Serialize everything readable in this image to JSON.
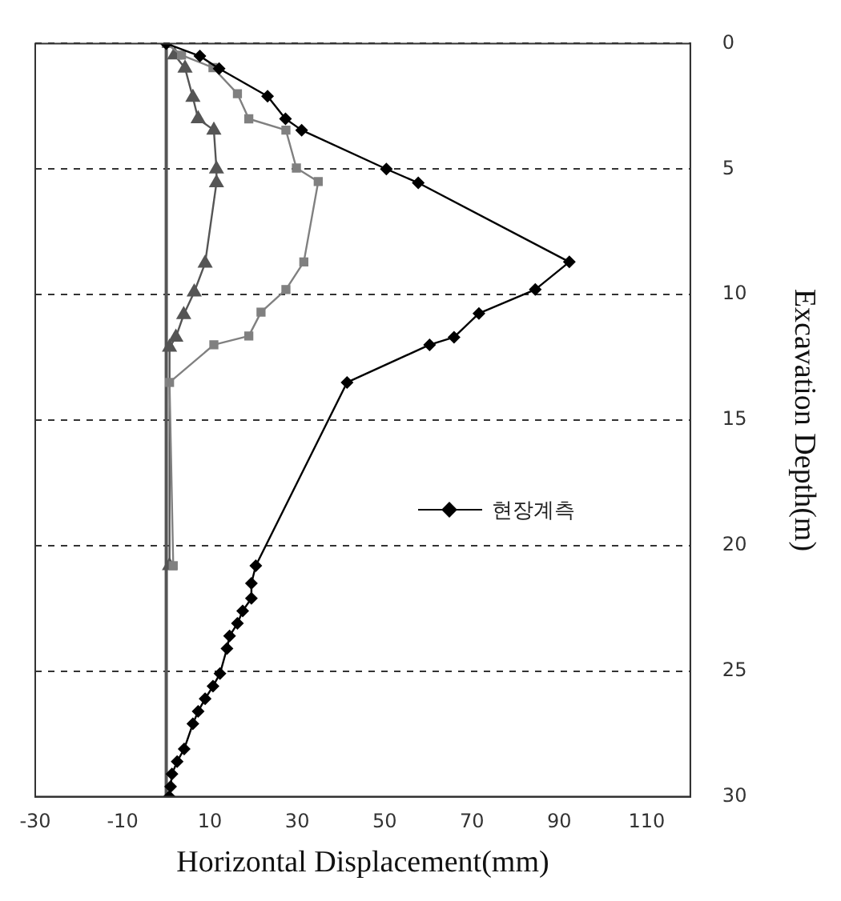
{
  "chart_data": {
    "type": "line",
    "xlabel": "Horizontal Displacement(mm)",
    "ylabel": "Excavation Depth(m)",
    "xlim": [
      -30,
      120
    ],
    "xticks": [
      -30,
      -10,
      10,
      30,
      50,
      70,
      90,
      110
    ],
    "ylim": [
      30,
      0
    ],
    "yticks": [
      0,
      5,
      10,
      15,
      20,
      25,
      30
    ],
    "grid": "y",
    "legend": "right",
    "ref_lines": [
      {
        "axis": "x",
        "value": 0,
        "color": "#555555"
      }
    ],
    "series": [
      {
        "name": "현장계측",
        "color": "#000000",
        "marker": "diamond",
        "x": [
          0,
          7.7,
          12.1,
          23.2,
          27.3,
          31.0,
          50.4,
          57.7,
          92.3,
          84.5,
          71.6,
          65.9,
          60.3,
          41.4,
          20.5,
          19.5,
          19.5,
          17.5,
          16.3,
          14.5,
          13.9,
          12.3,
          10.7,
          8.9,
          7.3,
          6.1,
          4.1,
          2.5,
          1.3,
          1.0,
          0.7
        ],
        "values": [
          0,
          0.5,
          1.0,
          2.1,
          3.0,
          3.45,
          5.0,
          5.55,
          8.7,
          9.8,
          10.75,
          11.7,
          12.0,
          13.5,
          20.8,
          21.5,
          22.1,
          22.6,
          23.1,
          23.6,
          24.1,
          25.1,
          25.6,
          26.1,
          26.6,
          27.1,
          28.1,
          28.6,
          29.1,
          29.6,
          30
        ]
      },
      {
        "color": "#808080",
        "marker": "square",
        "x": [
          0,
          3.5,
          10.7,
          16.3,
          18.9,
          27.4,
          29.8,
          34.8,
          31.5,
          27.4,
          21.7,
          18.9,
          10.9,
          0.75,
          1.6
        ],
        "values": [
          0,
          0.46,
          0.96,
          2.0,
          3.0,
          3.45,
          4.96,
          5.5,
          8.7,
          9.8,
          10.7,
          11.65,
          12.0,
          13.5,
          20.8
        ]
      },
      {
        "color": "#555555",
        "marker": "triangle",
        "x": [
          1.9,
          4.3,
          6.1,
          7.3,
          10.9,
          11.5,
          11.5,
          8.9,
          6.4,
          4.0,
          2.2,
          0.75,
          0.75
        ],
        "values": [
          0.46,
          0.98,
          2.15,
          3.0,
          3.45,
          5.0,
          5.55,
          8.75,
          9.9,
          10.8,
          11.7,
          12.1,
          20.8
        ]
      }
    ]
  }
}
